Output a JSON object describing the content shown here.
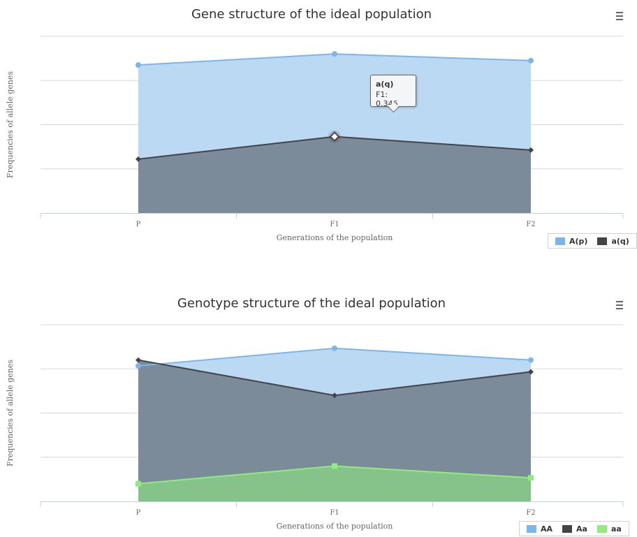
{
  "chart_data": [
    {
      "type": "area",
      "title": "Gene structure of the ideal population",
      "xlabel": "Generations of the population",
      "ylabel": "Frequencies of allele genes",
      "categories": [
        "P",
        "F1",
        "F2"
      ],
      "ylim": [
        0,
        0.8
      ],
      "grid": true,
      "legend_position": "bottom-right",
      "series": [
        {
          "name": "A(p)",
          "values": [
            0.67,
            0.72,
            0.69
          ],
          "color": "#7cb5ec",
          "fill": "#bcd9f4",
          "marker": "circle"
        },
        {
          "name": "a(q)",
          "values": [
            0.244,
            0.346,
            0.285
          ],
          "color": "#434348",
          "fill": "#7c8b99",
          "marker": "diamond"
        }
      ],
      "tooltip": {
        "series": "a(q)",
        "category": "F1",
        "text": "F1: 0.346"
      }
    },
    {
      "type": "area",
      "title": "Genotype structure of the ideal population",
      "xlabel": "Generations of the population",
      "ylabel": "Frequencies of allele genes",
      "categories": [
        "P",
        "F1",
        "F2"
      ],
      "ylim": [
        0,
        0.6
      ],
      "grid": true,
      "legend_position": "bottom-right",
      "series": [
        {
          "name": "AA",
          "values": [
            0.46,
            0.52,
            0.48
          ],
          "color": "#7cb5ec",
          "fill": "#bcd9f4",
          "marker": "circle"
        },
        {
          "name": "Aa",
          "values": [
            0.48,
            0.36,
            0.44
          ],
          "color": "#434348",
          "fill": "#7c8b99",
          "marker": "diamond"
        },
        {
          "name": "aa",
          "values": [
            0.06,
            0.12,
            0.08
          ],
          "color": "#90ed7d",
          "fill": "#86c38a",
          "marker": "square"
        }
      ]
    }
  ],
  "menu_icon": "hamburger-icon"
}
